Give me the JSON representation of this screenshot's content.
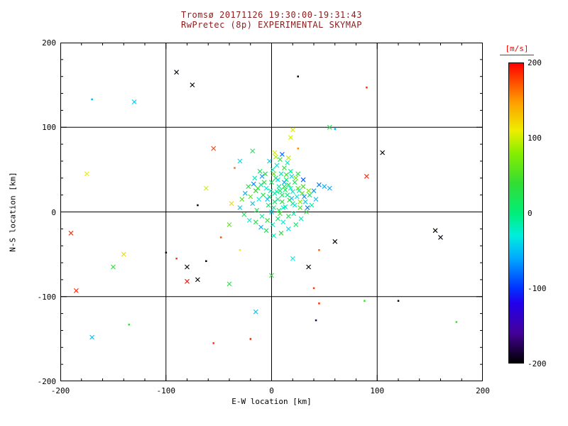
{
  "title": {
    "line1": "Tromsø 20171126 19:30:00-19:31:43",
    "line2": "RwPretec (8p) EXPERIMENTAL SKYMAP"
  },
  "axes": {
    "xlabel": "E-W location [km]",
    "ylabel": "N-S location [km]",
    "xlim": [
      -200,
      200
    ],
    "ylim": [
      -200,
      200
    ],
    "xticks": [
      -200,
      -100,
      0,
      100,
      200
    ],
    "yticks": [
      -200,
      -100,
      0,
      100,
      200
    ],
    "minor_step": 20,
    "grid_lines": [
      -100,
      0,
      100
    ]
  },
  "colorbar": {
    "label": "[m/s]",
    "min": -200,
    "max": 200,
    "ticks": [
      200,
      100,
      0,
      -100,
      -200
    ],
    "stops": [
      [
        -200,
        "#000000"
      ],
      [
        -160,
        "#440099"
      ],
      [
        -120,
        "#2200ee"
      ],
      [
        -100,
        "#0033ff"
      ],
      [
        -60,
        "#00aaff"
      ],
      [
        -30,
        "#00eedd"
      ],
      [
        0,
        "#00ee77"
      ],
      [
        40,
        "#33dd33"
      ],
      [
        80,
        "#88ee00"
      ],
      [
        110,
        "#eeee00"
      ],
      [
        150,
        "#ff9900"
      ],
      [
        200,
        "#ff0000"
      ]
    ]
  },
  "colors": {
    "title": "#8b1c1c",
    "axis": "#000000",
    "background": "#ffffff",
    "cbar_label": "#ff0000"
  },
  "chart_data": {
    "type": "scatter",
    "title": "RwPretec (8p) EXPERIMENTAL SKYMAP",
    "xlabel": "E-W location [km]",
    "ylabel": "N-S location [km]",
    "xlim": [
      -200,
      200
    ],
    "ylim": [
      -200,
      200
    ],
    "value_units": "m/s",
    "value_range": [
      -200,
      200
    ],
    "points": [
      [
        -90,
        165,
        -195
      ],
      [
        -75,
        150,
        -200
      ],
      [
        25,
        160,
        -200,
        "d"
      ],
      [
        90,
        147,
        185,
        "d"
      ],
      [
        -170,
        133,
        -55,
        "d"
      ],
      [
        -130,
        130,
        -45
      ],
      [
        55,
        100,
        25
      ],
      [
        60,
        98,
        -50,
        "d"
      ],
      [
        -55,
        75,
        180
      ],
      [
        105,
        70,
        -200
      ],
      [
        -175,
        45,
        110
      ],
      [
        90,
        42,
        190
      ],
      [
        -190,
        -25,
        185
      ],
      [
        155,
        -22,
        -200
      ],
      [
        -140,
        -50,
        120
      ],
      [
        -100,
        -48,
        -195,
        "d"
      ],
      [
        -90,
        -55,
        185,
        "d"
      ],
      [
        -150,
        -65,
        35
      ],
      [
        -80,
        -65,
        -200
      ],
      [
        -62,
        -58,
        -195,
        "d"
      ],
      [
        -185,
        -93,
        190
      ],
      [
        -80,
        -82,
        195
      ],
      [
        -70,
        -80,
        -200
      ],
      [
        -40,
        -85,
        30
      ],
      [
        -15,
        -118,
        -45
      ],
      [
        45,
        -108,
        185,
        "d"
      ],
      [
        42,
        -128,
        -180,
        "d"
      ],
      [
        88,
        -105,
        45,
        "d"
      ],
      [
        120,
        -105,
        -195,
        "d"
      ],
      [
        -170,
        -148,
        -50
      ],
      [
        -135,
        -133,
        40,
        "d"
      ],
      [
        175,
        -130,
        45,
        "d"
      ],
      [
        -55,
        -155,
        185,
        "d"
      ],
      [
        -20,
        -150,
        190,
        "d"
      ],
      [
        40,
        -90,
        180,
        "d"
      ],
      [
        35,
        -65,
        -200
      ],
      [
        60,
        -35,
        -200
      ],
      [
        160,
        -30,
        -195
      ],
      [
        -48,
        -30,
        175,
        "d"
      ],
      [
        -30,
        -45,
        110,
        "d"
      ],
      [
        0,
        -75,
        35
      ],
      [
        20,
        -55,
        -30
      ],
      [
        45,
        -45,
        170,
        "d"
      ],
      [
        -70,
        8,
        -195,
        "d"
      ],
      [
        -2,
        18,
        10
      ],
      [
        3,
        22,
        -15
      ],
      [
        8,
        25,
        5
      ],
      [
        12,
        30,
        20
      ],
      [
        -5,
        28,
        -25
      ],
      [
        0,
        35,
        15
      ],
      [
        6,
        15,
        -10
      ],
      [
        10,
        12,
        30
      ],
      [
        15,
        20,
        0
      ],
      [
        18,
        28,
        -20
      ],
      [
        -8,
        20,
        25
      ],
      [
        -12,
        15,
        -30
      ],
      [
        -3,
        8,
        10
      ],
      [
        2,
        5,
        -5
      ],
      [
        7,
        2,
        20
      ],
      [
        13,
        6,
        -15
      ],
      [
        20,
        10,
        5
      ],
      [
        24,
        18,
        -35
      ],
      [
        -15,
        25,
        40
      ],
      [
        -10,
        32,
        -10
      ],
      [
        4,
        40,
        25
      ],
      [
        9,
        45,
        -20
      ],
      [
        14,
        38,
        10
      ],
      [
        19,
        42,
        -40
      ],
      [
        -6,
        45,
        30
      ],
      [
        1,
        50,
        -15
      ],
      [
        22,
        35,
        15
      ],
      [
        26,
        25,
        -25
      ],
      [
        30,
        30,
        45
      ],
      [
        -18,
        10,
        -50
      ],
      [
        -14,
        2,
        20
      ],
      [
        -9,
        -5,
        -10
      ],
      [
        -4,
        -10,
        35
      ],
      [
        1,
        -15,
        -20
      ],
      [
        6,
        -8,
        10
      ],
      [
        11,
        -12,
        -30
      ],
      [
        16,
        -5,
        25
      ],
      [
        21,
        -2,
        -15
      ],
      [
        27,
        5,
        50
      ],
      [
        32,
        12,
        -40
      ],
      [
        36,
        20,
        10
      ],
      [
        -20,
        18,
        60
      ],
      [
        -25,
        22,
        -55
      ],
      [
        -22,
        30,
        30
      ],
      [
        -16,
        40,
        -20
      ],
      [
        -11,
        48,
        15
      ],
      [
        5,
        55,
        -35
      ],
      [
        12,
        52,
        40
      ],
      [
        18,
        48,
        -10
      ],
      [
        25,
        45,
        20
      ],
      [
        -2,
        60,
        -45
      ],
      [
        8,
        62,
        30
      ],
      [
        15,
        58,
        -25
      ],
      [
        3,
        70,
        100
      ],
      [
        -5,
        -22,
        20
      ],
      [
        2,
        -28,
        -15
      ],
      [
        9,
        -25,
        35
      ],
      [
        16,
        -20,
        -40
      ],
      [
        23,
        -15,
        15
      ],
      [
        -10,
        -18,
        -60
      ],
      [
        -15,
        -12,
        25
      ],
      [
        28,
        -8,
        -20
      ],
      [
        33,
        0,
        40
      ],
      [
        38,
        8,
        -10
      ],
      [
        -28,
        15,
        55
      ],
      [
        -30,
        5,
        -45
      ],
      [
        -26,
        -3,
        20
      ],
      [
        -21,
        -10,
        -30
      ],
      [
        3,
        12,
        8
      ],
      [
        5,
        24,
        -8
      ],
      [
        10,
        20,
        12
      ],
      [
        7,
        30,
        -12
      ],
      [
        13,
        26,
        18
      ],
      [
        -1,
        25,
        -18
      ],
      [
        16,
        32,
        22
      ],
      [
        20,
        24,
        -22
      ],
      [
        -7,
        35,
        28
      ],
      [
        11,
        5,
        -28
      ],
      [
        17,
        14,
        32
      ],
      [
        22,
        8,
        -32
      ],
      [
        -13,
        28,
        38
      ],
      [
        6,
        38,
        -38
      ],
      [
        14,
        44,
        42
      ],
      [
        0,
        0,
        -42
      ],
      [
        8,
        -2,
        48
      ],
      [
        19,
        16,
        -48
      ],
      [
        25,
        28,
        52
      ],
      [
        -4,
        15,
        -52
      ],
      [
        29,
        22,
        58
      ],
      [
        12,
        35,
        -58
      ],
      [
        2,
        45,
        65
      ],
      [
        -9,
        42,
        -65
      ],
      [
        23,
        40,
        70
      ],
      [
        31,
        18,
        -70
      ],
      [
        35,
        25,
        75
      ],
      [
        -17,
        33,
        -75
      ],
      [
        27,
        12,
        80
      ],
      [
        34,
        5,
        -80
      ],
      [
        4,
        65,
        90
      ],
      [
        10,
        68,
        -85
      ],
      [
        16,
        64,
        95
      ],
      [
        20,
        97,
        105
      ],
      [
        18,
        88,
        100
      ],
      [
        -18,
        72,
        20
      ],
      [
        -30,
        60,
        -40
      ],
      [
        30,
        38,
        -90
      ],
      [
        45,
        32,
        -75
      ],
      [
        50,
        30,
        -55
      ],
      [
        55,
        28,
        -60
      ],
      [
        -35,
        52,
        165,
        "d"
      ],
      [
        -62,
        28,
        100
      ],
      [
        25,
        75,
        155,
        "d"
      ],
      [
        40,
        25,
        -65
      ],
      [
        42,
        15,
        -50
      ],
      [
        -38,
        10,
        120
      ],
      [
        -40,
        -15,
        60
      ]
    ]
  }
}
